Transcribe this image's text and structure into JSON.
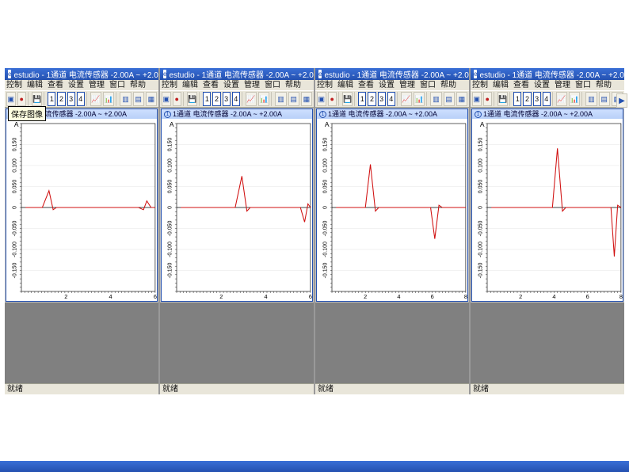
{
  "app": {
    "title_prefix": "estudio - ",
    "channel_title": "1通道 电流传感器 -2.00A ~ +2.00A"
  },
  "menu": {
    "items": [
      "控制",
      "编辑",
      "查看",
      "设置",
      "管理",
      "窗口",
      "帮助"
    ]
  },
  "toolbar": {
    "channels": [
      "1",
      "2",
      "3",
      "4"
    ],
    "tooltip_save": "保存图像"
  },
  "plot": {
    "header_prefix": "1通道 电流传感器 -2.00A ~ +2.00A",
    "ylabel_ticks": [
      "0.150",
      "0.100",
      "0.050",
      "0",
      "-0.050",
      "-0.100",
      "-0.150"
    ],
    "line_color": "#d01010",
    "grid_color": "#e6e6e6",
    "axis_color": "#000000",
    "border_color": "#2451b0",
    "background": "#ffffff",
    "ylim": [
      -0.2,
      0.2
    ],
    "font_size_tick": 7
  },
  "status": {
    "ready": "就绪"
  },
  "panes": [
    {
      "show_tooltip": true,
      "xmax": 6,
      "xticks": [
        2,
        4,
        6
      ],
      "poly": [
        [
          5,
          115
        ],
        [
          25,
          115
        ],
        [
          33,
          92
        ],
        [
          38,
          118
        ],
        [
          42,
          115
        ],
        [
          140,
          115
        ],
        [
          146,
          118
        ],
        [
          150,
          106
        ],
        [
          155,
          115
        ],
        [
          160,
          115
        ]
      ]
    },
    {
      "show_tooltip": false,
      "xmax": 6,
      "xticks": [
        2,
        4,
        6
      ],
      "poly": [
        [
          5,
          115
        ],
        [
          70,
          115
        ],
        [
          78,
          72
        ],
        [
          84,
          120
        ],
        [
          88,
          115
        ],
        [
          148,
          115
        ],
        [
          153,
          135
        ],
        [
          157,
          110
        ],
        [
          160,
          115
        ]
      ]
    },
    {
      "show_tooltip": false,
      "xmax": 8,
      "xticks": [
        2,
        4,
        6,
        8
      ],
      "poly": [
        [
          5,
          115
        ],
        [
          40,
          115
        ],
        [
          46,
          56
        ],
        [
          52,
          120
        ],
        [
          56,
          115
        ],
        [
          118,
          115
        ],
        [
          123,
          158
        ],
        [
          128,
          112
        ],
        [
          132,
          115
        ],
        [
          160,
          115
        ]
      ]
    },
    {
      "show_tooltip": false,
      "xmax": 8,
      "xticks": [
        2,
        4,
        6,
        8
      ],
      "poly": [
        [
          5,
          115
        ],
        [
          78,
          115
        ],
        [
          84,
          34
        ],
        [
          90,
          120
        ],
        [
          94,
          115
        ],
        [
          148,
          115
        ],
        [
          152,
          182
        ],
        [
          156,
          112
        ],
        [
          160,
          115
        ]
      ]
    }
  ]
}
